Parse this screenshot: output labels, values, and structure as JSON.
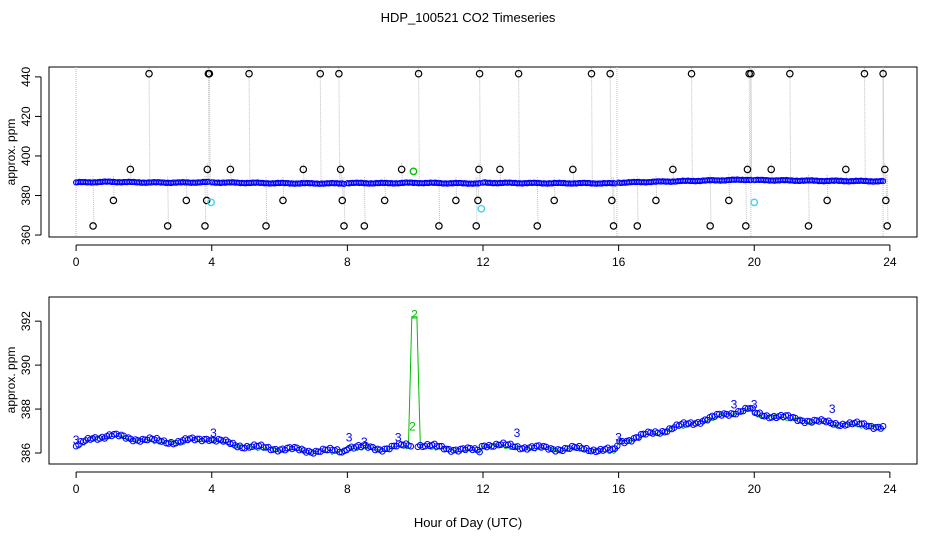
{
  "title": "HDP_100521  CO2 Timeseries",
  "xlabel": "Hour of Day (UTC)",
  "colors": {
    "blue": "#0000ff",
    "green": "#00c000",
    "cyan": "#3fd6ea",
    "black": "#000000",
    "line": "#bfbfbf"
  },
  "chart_data": [
    {
      "type": "scatter",
      "title": "",
      "xlabel": "",
      "ylabel": "approx. ppm",
      "xlim": [
        -0.8,
        24.8
      ],
      "ylim": [
        359,
        445
      ],
      "x_ticks": [
        0,
        4,
        8,
        12,
        16,
        20,
        24
      ],
      "y_ticks": [
        360,
        380,
        400,
        420,
        440
      ],
      "grid": false,
      "baseline": [
        [
          0.0,
          386.6
        ],
        [
          1.0,
          386.9
        ],
        [
          2.0,
          386.6
        ],
        [
          3.0,
          386.5
        ],
        [
          3.9,
          386.7
        ],
        [
          4.0,
          386.6
        ],
        [
          5.0,
          386.4
        ],
        [
          6.0,
          386.2
        ],
        [
          7.0,
          386.1
        ],
        [
          7.9,
          386.1
        ],
        [
          8.0,
          386.3
        ],
        [
          9.0,
          386.2
        ],
        [
          10.0,
          386.4
        ],
        [
          11.0,
          386.2
        ],
        [
          11.9,
          386.1
        ],
        [
          12.0,
          386.4
        ],
        [
          13.0,
          386.3
        ],
        [
          14.0,
          386.2
        ],
        [
          15.0,
          386.2
        ],
        [
          15.9,
          386.1
        ],
        [
          16.0,
          386.5
        ],
        [
          17.0,
          386.9
        ],
        [
          18.0,
          387.3
        ],
        [
          19.0,
          387.7
        ],
        [
          19.9,
          388.0
        ],
        [
          20.0,
          387.8
        ],
        [
          21.0,
          387.6
        ],
        [
          22.0,
          387.4
        ],
        [
          23.0,
          387.3
        ],
        [
          23.8,
          387.2
        ]
      ],
      "gaps": [
        3.95,
        7.95,
        11.95,
        15.95,
        19.95
      ],
      "series": [
        {
          "color": "blue",
          "marker": "open-circle",
          "points": "dense baseline samples every ~0.05 h"
        },
        {
          "color": "black",
          "marker": "open-circle",
          "points": [
            [
              0.5,
              364.6
            ],
            [
              1.1,
              377.5
            ],
            [
              1.6,
              393.2
            ],
            [
              2.15,
              441.6
            ],
            [
              2.7,
              364.6
            ],
            [
              3.25,
              377.5
            ],
            [
              3.8,
              364.6
            ],
            [
              3.85,
              377.5
            ],
            [
              3.87,
              393.2
            ],
            [
              3.9,
              441.6
            ],
            [
              3.93,
              441.6
            ],
            [
              4.55,
              393.2
            ],
            [
              5.1,
              441.6
            ],
            [
              5.6,
              364.6
            ],
            [
              6.1,
              377.5
            ],
            [
              6.7,
              393.2
            ],
            [
              7.2,
              441.6
            ],
            [
              7.75,
              441.6
            ],
            [
              7.8,
              393.2
            ],
            [
              7.85,
              377.5
            ],
            [
              7.9,
              364.6
            ],
            [
              8.5,
              364.6
            ],
            [
              9.1,
              377.5
            ],
            [
              9.6,
              393.2
            ],
            [
              10.1,
              441.6
            ],
            [
              10.7,
              364.6
            ],
            [
              11.2,
              377.5
            ],
            [
              11.8,
              364.6
            ],
            [
              11.85,
              377.5
            ],
            [
              11.88,
              393.2
            ],
            [
              11.9,
              441.6
            ],
            [
              12.5,
              393.2
            ],
            [
              13.05,
              441.6
            ],
            [
              13.6,
              364.6
            ],
            [
              14.1,
              377.5
            ],
            [
              14.65,
              393.2
            ],
            [
              15.2,
              441.6
            ],
            [
              15.75,
              441.6
            ],
            [
              15.8,
              377.5
            ],
            [
              15.85,
              364.6
            ],
            [
              16.55,
              364.6
            ],
            [
              17.1,
              377.5
            ],
            [
              17.6,
              393.2
            ],
            [
              18.15,
              441.6
            ],
            [
              18.7,
              364.6
            ],
            [
              19.25,
              377.5
            ],
            [
              19.75,
              364.6
            ],
            [
              19.8,
              393.2
            ],
            [
              19.85,
              441.6
            ],
            [
              19.9,
              441.6
            ],
            [
              20.5,
              393.2
            ],
            [
              21.05,
              441.6
            ],
            [
              21.6,
              364.6
            ],
            [
              22.15,
              377.5
            ],
            [
              22.7,
              393.2
            ],
            [
              23.25,
              441.6
            ],
            [
              23.8,
              441.6
            ],
            [
              23.85,
              393.2
            ],
            [
              23.88,
              377.5
            ],
            [
              23.92,
              364.6
            ]
          ]
        },
        {
          "color": "cyan",
          "marker": "open-circle",
          "points": [
            [
              3.98,
              376.5
            ],
            [
              11.95,
              373.3
            ],
            [
              20.0,
              376.5
            ]
          ]
        },
        {
          "color": "green",
          "marker": "open-circle",
          "points": [
            [
              9.95,
              392.2
            ]
          ]
        }
      ]
    },
    {
      "type": "line",
      "title": "",
      "xlabel": "Hour of Day (UTC)",
      "ylabel": "approx. ppm",
      "xlim": [
        -0.8,
        24.8
      ],
      "ylim": [
        385.5,
        393.1
      ],
      "x_ticks": [
        0,
        4,
        8,
        12,
        16,
        20,
        24
      ],
      "y_ticks": [
        386,
        388,
        390,
        392
      ],
      "grid": false,
      "baseline": [
        [
          0.0,
          386.3
        ],
        [
          0.5,
          386.7
        ],
        [
          1.0,
          386.8
        ],
        [
          2.0,
          386.6
        ],
        [
          3.0,
          386.5
        ],
        [
          3.9,
          386.7
        ],
        [
          4.0,
          386.6
        ],
        [
          5.0,
          386.3
        ],
        [
          6.0,
          386.2
        ],
        [
          7.0,
          386.1
        ],
        [
          7.9,
          386.1
        ],
        [
          8.0,
          386.3
        ],
        [
          9.0,
          386.2
        ],
        [
          10.0,
          386.4
        ],
        [
          11.0,
          386.2
        ],
        [
          11.9,
          386.1
        ],
        [
          12.0,
          386.4
        ],
        [
          13.0,
          386.3
        ],
        [
          14.0,
          386.2
        ],
        [
          15.0,
          386.2
        ],
        [
          15.9,
          386.1
        ],
        [
          16.0,
          386.5
        ],
        [
          17.0,
          386.9
        ],
        [
          18.0,
          387.3
        ],
        [
          19.0,
          387.7
        ],
        [
          19.5,
          387.9
        ],
        [
          19.9,
          388.0
        ],
        [
          20.0,
          387.8
        ],
        [
          21.0,
          387.6
        ],
        [
          22.0,
          387.4
        ],
        [
          23.0,
          387.3
        ],
        [
          23.8,
          387.2
        ]
      ],
      "spike": {
        "x": 9.98,
        "y": 392.2
      },
      "labels": [
        {
          "text": "3",
          "x": 0.0,
          "y": 386.6
        },
        {
          "text": "3",
          "x": 4.05,
          "y": 386.9
        },
        {
          "text": "3",
          "x": 8.05,
          "y": 386.7
        },
        {
          "text": "3",
          "x": 8.5,
          "y": 386.5
        },
        {
          "text": "3",
          "x": 9.5,
          "y": 386.7
        },
        {
          "text": "3",
          "x": 13.0,
          "y": 386.9
        },
        {
          "text": "3",
          "x": 16.0,
          "y": 386.7
        },
        {
          "text": "3",
          "x": 19.4,
          "y": 388.2
        },
        {
          "text": "3",
          "x": 20.0,
          "y": 388.2
        },
        {
          "text": "3",
          "x": 22.3,
          "y": 388.0
        },
        {
          "text": "2",
          "x": 9.98,
          "y": 392.3
        },
        {
          "text": "2",
          "x": 9.92,
          "y": 387.2
        }
      ],
      "series": [
        {
          "color": "blue",
          "marker": "open-circle"
        },
        {
          "color": "green",
          "marker": "line"
        }
      ]
    }
  ]
}
